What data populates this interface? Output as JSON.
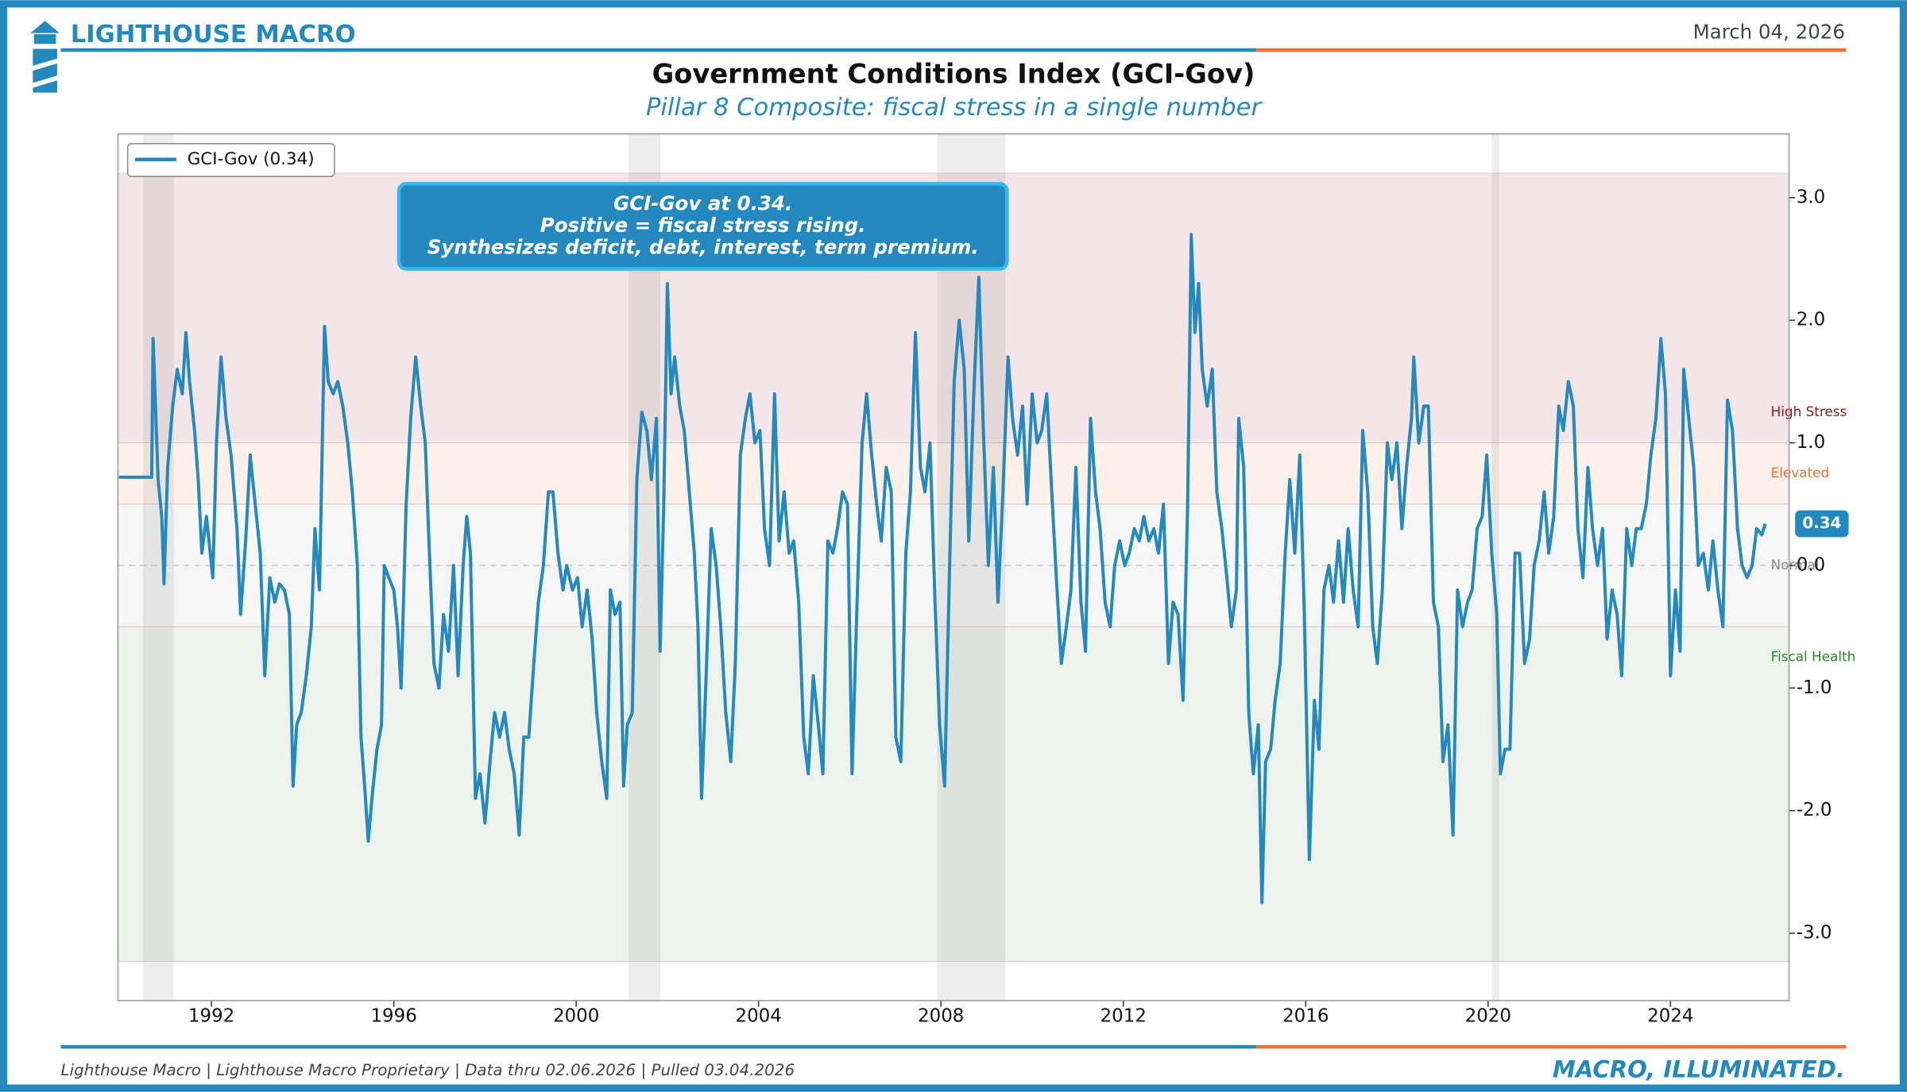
{
  "header": {
    "brand": "LIGHTHOUSE MACRO",
    "date": "March 04, 2026"
  },
  "footer": {
    "source": "Lighthouse Macro | Lighthouse Macro Proprietary | Data thru 02.06.2026 | Pulled 03.04.2026",
    "tagline": "MACRO, ILLUMINATED."
  },
  "chart_data": {
    "type": "line",
    "title": "Government Conditions Index (GCI-Gov)",
    "subtitle": "Pillar 8 Composite: fiscal stress in a single number",
    "annotation": [
      "GCI-Gov at 0.34.",
      "Positive = fiscal stress rising.",
      "Synthesizes deficit, debt, interest, term premium."
    ],
    "legend": "upper left",
    "xlim": [
      1989.95,
      2026.6
    ],
    "xticks": [
      1992,
      1996,
      2000,
      2004,
      2008,
      2012,
      2016,
      2020,
      2024
    ],
    "ylim": [
      -3.55,
      3.52
    ],
    "yticks": [
      {
        "value": 3,
        "label": "3.0"
      },
      {
        "value": 2,
        "label": "2.0"
      },
      {
        "value": 1,
        "label": "1.0"
      },
      {
        "value": 0,
        "label": "0.0"
      },
      {
        "value": -1,
        "label": "-1.0"
      },
      {
        "value": -2,
        "label": "-2.0"
      },
      {
        "value": -3,
        "label": "-3.0"
      }
    ],
    "bands": [
      {
        "label": "High Stress",
        "range": [
          1,
          3.2
        ],
        "color": "#f4e6e8",
        "label_color": "#8b1a1a"
      },
      {
        "label": "Elevated",
        "range": [
          0.5,
          1
        ],
        "color": "#fdf1ea",
        "label_color": "#f07030"
      },
      {
        "label": "Normal",
        "range": [
          -0.5,
          0.5
        ],
        "color": "#f6f6f6",
        "label_color": "#888888"
      },
      {
        "label": "Fiscal Health",
        "range": [
          -3.23,
          -0.5
        ],
        "color": "#edf3ec",
        "label_color": "#228b22"
      }
    ],
    "recessions": [
      [
        1990.5,
        1991.17
      ],
      [
        2001.15,
        2001.85
      ],
      [
        2007.92,
        2009.41
      ],
      [
        2020.08,
        2020.24
      ]
    ],
    "x": [
      1989.97,
      1990.69,
      1990.72,
      1990.83,
      1990.91,
      1990.96,
      1991.04,
      1991.15,
      1991.25,
      1991.36,
      1991.44,
      1991.52,
      1991.63,
      1991.71,
      1991.79,
      1991.89,
      1992.03,
      1992.11,
      1992.21,
      1992.32,
      1992.43,
      1992.56,
      1992.64,
      1992.75,
      1992.85,
      1992.96,
      1993.07,
      1993.17,
      1993.28,
      1993.39,
      1993.49,
      1993.6,
      1993.71,
      1993.79,
      1993.87,
      1993.97,
      1994.08,
      1994.19,
      1994.27,
      1994.37,
      1994.48,
      1994.56,
      1994.67,
      1994.77,
      1994.88,
      1994.99,
      1995.09,
      1995.2,
      1995.28,
      1995.36,
      1995.44,
      1995.52,
      1995.63,
      1995.73,
      1995.79,
      1995.89,
      1996.0,
      1996.08,
      1996.16,
      1996.27,
      1996.37,
      1996.48,
      1996.59,
      1996.69,
      1996.77,
      1996.88,
      1996.99,
      1997.09,
      1997.2,
      1997.31,
      1997.41,
      1997.52,
      1997.6,
      1997.68,
      1997.79,
      1997.89,
      1998.0,
      1998.11,
      1998.21,
      1998.32,
      1998.43,
      1998.53,
      1998.64,
      1998.75,
      1998.85,
      1998.96,
      1999.07,
      1999.17,
      1999.28,
      1999.39,
      1999.49,
      1999.6,
      1999.71,
      1999.79,
      1999.92,
      2000.03,
      2000.13,
      2000.24,
      2000.35,
      2000.45,
      2000.56,
      2000.67,
      2000.75,
      2000.85,
      2000.96,
      2001.04,
      2001.12,
      2001.23,
      2001.33,
      2001.44,
      2001.55,
      2001.65,
      2001.76,
      2001.84,
      2001.92,
      2002.0,
      2002.08,
      2002.16,
      2002.27,
      2002.37,
      2002.48,
      2002.59,
      2002.67,
      2002.75,
      2002.85,
      2002.96,
      2003.07,
      2003.17,
      2003.28,
      2003.39,
      2003.49,
      2003.6,
      2003.71,
      2003.81,
      2003.92,
      2004.03,
      2004.13,
      2004.24,
      2004.35,
      2004.45,
      2004.56,
      2004.67,
      2004.77,
      2004.88,
      2004.99,
      2005.09,
      2005.2,
      2005.31,
      2005.41,
      2005.52,
      2005.63,
      2005.73,
      2005.84,
      2005.95,
      2006.05,
      2006.16,
      2006.27,
      2006.37,
      2006.48,
      2006.59,
      2006.69,
      2006.8,
      2006.91,
      2007.01,
      2007.12,
      2007.23,
      2007.33,
      2007.44,
      2007.55,
      2007.65,
      2007.76,
      2007.87,
      2007.97,
      2008.08,
      2008.19,
      2008.29,
      2008.4,
      2008.51,
      2008.61,
      2008.72,
      2008.83,
      2008.93,
      2009.04,
      2009.15,
      2009.25,
      2009.36,
      2009.47,
      2009.57,
      2009.68,
      2009.79,
      2009.89,
      2010.0,
      2010.11,
      2010.21,
      2010.32,
      2010.43,
      2010.53,
      2010.64,
      2010.75,
      2010.85,
      2010.96,
      2011.07,
      2011.17,
      2011.28,
      2011.39,
      2011.49,
      2011.6,
      2011.71,
      2011.81,
      2011.92,
      2012.03,
      2012.13,
      2012.24,
      2012.35,
      2012.45,
      2012.56,
      2012.67,
      2012.77,
      2012.88,
      2012.99,
      2013.09,
      2013.2,
      2013.31,
      2013.41,
      2013.49,
      2013.57,
      2013.65,
      2013.73,
      2013.84,
      2013.95,
      2014.05,
      2014.16,
      2014.27,
      2014.37,
      2014.48,
      2014.53,
      2014.64,
      2014.75,
      2014.85,
      2014.96,
      2015.04,
      2015.12,
      2015.23,
      2015.33,
      2015.44,
      2015.55,
      2015.65,
      2015.76,
      2015.87,
      2015.97,
      2016.08,
      2016.19,
      2016.29,
      2016.4,
      2016.51,
      2016.61,
      2016.72,
      2016.83,
      2016.93,
      2017.04,
      2017.15,
      2017.25,
      2017.36,
      2017.47,
      2017.57,
      2017.68,
      2017.79,
      2017.89,
      2018.0,
      2018.11,
      2018.21,
      2018.32,
      2018.37,
      2018.48,
      2018.59,
      2018.69,
      2018.8,
      2018.91,
      2019.01,
      2019.12,
      2019.23,
      2019.33,
      2019.44,
      2019.55,
      2019.65,
      2019.76,
      2019.87,
      2019.97,
      2020.08,
      2020.19,
      2020.27,
      2020.37,
      2020.48,
      2020.59,
      2020.69,
      2020.8,
      2020.91,
      2021.01,
      2021.12,
      2021.23,
      2021.33,
      2021.44,
      2021.55,
      2021.65,
      2021.76,
      2021.87,
      2021.97,
      2022.08,
      2022.19,
      2022.29,
      2022.4,
      2022.51,
      2022.61,
      2022.72,
      2022.83,
      2022.93,
      2023.04,
      2023.15,
      2023.25,
      2023.36,
      2023.47,
      2023.57,
      2023.68,
      2023.79,
      2023.89,
      2024.0,
      2024.11,
      2024.21,
      2024.29,
      2024.4,
      2024.51,
      2024.61,
      2024.72,
      2024.83,
      2024.93,
      2025.04,
      2025.15,
      2025.25,
      2025.36,
      2025.47,
      2025.57,
      2025.68,
      2025.79,
      2025.89,
      2026.0,
      2026.08
    ],
    "series": [
      {
        "name": "GCI-Gov (0.34)",
        "color": "#2389be",
        "values": [
          0.72,
          0.72,
          1.85,
          0.7,
          0.4,
          -0.15,
          0.8,
          1.3,
          1.6,
          1.4,
          1.9,
          1.5,
          1.1,
          0.7,
          0.1,
          0.4,
          -0.1,
          1.0,
          1.7,
          1.2,
          0.9,
          0.3,
          -0.4,
          0.2,
          0.9,
          0.5,
          0.1,
          -0.9,
          -0.1,
          -0.3,
          -0.15,
          -0.2,
          -0.4,
          -1.8,
          -1.3,
          -1.2,
          -0.9,
          -0.5,
          0.3,
          -0.2,
          1.95,
          1.5,
          1.4,
          1.5,
          1.3,
          1.0,
          0.6,
          0.0,
          -1.4,
          -1.8,
          -2.25,
          -1.9,
          -1.5,
          -1.3,
          0.0,
          -0.1,
          -0.2,
          -0.5,
          -1.0,
          0.5,
          1.2,
          1.7,
          1.3,
          1.0,
          0.2,
          -0.8,
          -1.0,
          -0.4,
          -0.7,
          0.0,
          -0.9,
          0.0,
          0.4,
          0.1,
          -1.9,
          -1.7,
          -2.1,
          -1.6,
          -1.2,
          -1.4,
          -1.2,
          -1.5,
          -1.7,
          -2.2,
          -1.4,
          -1.4,
          -0.8,
          -0.3,
          0.0,
          0.6,
          0.6,
          0.1,
          -0.2,
          0.0,
          -0.2,
          -0.1,
          -0.5,
          -0.2,
          -0.6,
          -1.2,
          -1.6,
          -1.9,
          -0.2,
          -0.4,
          -0.3,
          -1.8,
          -1.3,
          -1.2,
          0.7,
          1.25,
          1.1,
          0.7,
          1.2,
          -0.7,
          0.5,
          2.3,
          1.4,
          1.7,
          1.3,
          1.1,
          0.6,
          0.1,
          -0.5,
          -1.9,
          -0.9,
          0.3,
          0.0,
          -0.5,
          -1.2,
          -1.6,
          -0.8,
          0.9,
          1.2,
          1.4,
          1.0,
          1.1,
          0.3,
          0.0,
          1.4,
          0.2,
          0.6,
          0.1,
          0.2,
          -0.3,
          -1.4,
          -1.7,
          -0.9,
          -1.3,
          -1.7,
          0.2,
          0.1,
          0.3,
          0.6,
          0.5,
          -1.7,
          -0.3,
          1.0,
          1.4,
          0.9,
          0.5,
          0.2,
          0.8,
          0.6,
          -1.4,
          -1.6,
          0.1,
          0.6,
          1.9,
          0.8,
          0.6,
          1.0,
          -0.3,
          -1.3,
          -1.8,
          0.0,
          1.5,
          2.0,
          1.6,
          0.2,
          1.4,
          2.35,
          1.1,
          0.0,
          0.8,
          -0.3,
          0.6,
          1.7,
          1.2,
          0.9,
          1.3,
          0.5,
          1.4,
          1.0,
          1.1,
          1.4,
          0.6,
          -0.1,
          -0.8,
          -0.5,
          -0.2,
          0.8,
          -0.3,
          -0.7,
          1.2,
          0.6,
          0.3,
          -0.3,
          -0.5,
          0.0,
          0.2,
          0.0,
          0.1,
          0.3,
          0.2,
          0.4,
          0.2,
          0.3,
          0.1,
          0.5,
          -0.8,
          -0.3,
          -0.4,
          -1.1,
          0.5,
          2.7,
          1.9,
          2.3,
          1.6,
          1.3,
          1.6,
          0.6,
          0.3,
          -0.1,
          -0.5,
          -0.2,
          1.2,
          0.8,
          -1.2,
          -1.7,
          -1.3,
          -2.75,
          -1.6,
          -1.5,
          -1.1,
          -0.8,
          0.1,
          0.7,
          0.1,
          0.9,
          -0.4,
          -2.4,
          -1.1,
          -1.5,
          -0.2,
          0.0,
          -0.3,
          0.2,
          -0.3,
          0.3,
          -0.2,
          -0.5,
          1.1,
          0.6,
          -0.5,
          -0.8,
          -0.2,
          1.0,
          0.7,
          1.0,
          0.3,
          0.8,
          1.2,
          1.7,
          1.0,
          1.3,
          1.3,
          -0.3,
          -0.5,
          -1.6,
          -1.3,
          -2.2,
          -0.2,
          -0.5,
          -0.3,
          -0.2,
          0.3,
          0.4,
          0.9,
          0.1,
          -0.4,
          -1.7,
          -1.5,
          -1.5,
          0.1,
          0.1,
          -0.8,
          -0.6,
          0.0,
          0.2,
          0.6,
          0.1,
          0.4,
          1.3,
          1.1,
          1.5,
          1.3,
          0.3,
          -0.1,
          0.8,
          0.3,
          0.0,
          0.3,
          -0.6,
          -0.2,
          -0.4,
          -0.9,
          0.3,
          0.0,
          0.3,
          0.3,
          0.5,
          0.9,
          1.2,
          1.85,
          1.4,
          -0.9,
          -0.2,
          -0.7,
          1.6,
          1.2,
          0.8,
          0.0,
          0.1,
          -0.2,
          0.2,
          -0.2,
          -0.5,
          1.35,
          1.1,
          0.3,
          0.0,
          -0.1,
          0.0,
          0.3,
          0.25,
          0.34
        ]
      }
    ]
  }
}
